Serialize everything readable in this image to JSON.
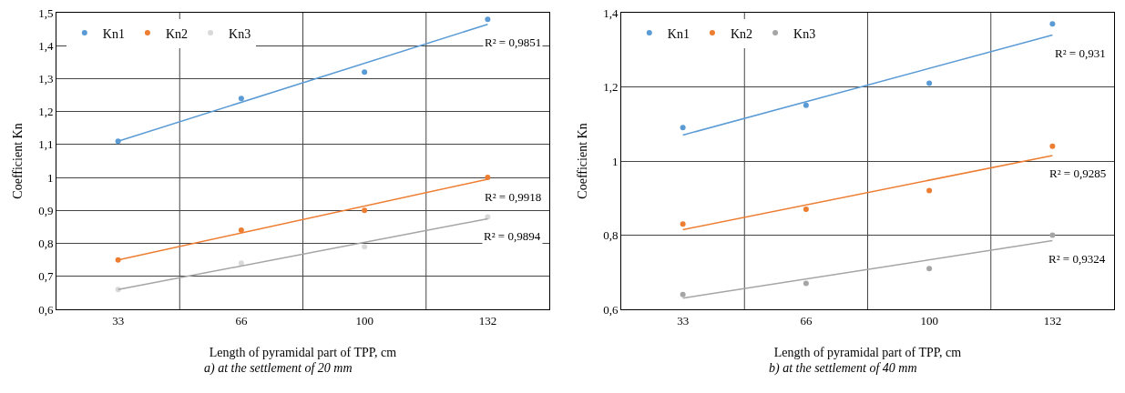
{
  "chart_data": [
    {
      "type": "scatter",
      "xlabel": "Length of pyramidal part of TPP, cm",
      "ylabel": "Coefficient Kn",
      "categories": [
        "33",
        "66",
        "100",
        "132"
      ],
      "series": [
        {
          "name": "Kn1",
          "color": "#5b9bd5",
          "values": [
            1.11,
            1.24,
            1.32,
            1.48
          ]
        },
        {
          "name": "Kn2",
          "color": "#ed7d31",
          "values": [
            0.75,
            0.84,
            0.9,
            1.0
          ]
        },
        {
          "name": "Kn3",
          "color": "#d9d9d9",
          "values": [
            0.66,
            0.74,
            0.79,
            0.88
          ]
        },
        {
          "type": "line",
          "marker": "none",
          "color": "#5b9bd5",
          "x": [
            "33",
            "132"
          ],
          "values": [
            1.11,
            1.465
          ]
        },
        {
          "type": "line",
          "marker": "none",
          "color": "#ed7d31",
          "x": [
            "33",
            "132"
          ],
          "values": [
            0.75,
            0.995
          ]
        },
        {
          "type": "line",
          "marker": "none",
          "color": "#a5a5a5",
          "x": [
            "33",
            "132"
          ],
          "values": [
            0.66,
            0.875
          ]
        }
      ],
      "ylim": [
        0.6,
        1.5
      ],
      "yticks": [
        {
          "value": 0.6,
          "label": "0,6"
        },
        {
          "value": 0.7,
          "label": "0,7"
        },
        {
          "value": 0.8,
          "label": "0,8"
        },
        {
          "value": 0.9,
          "label": "0,9"
        },
        1,
        {
          "value": 1.1,
          "label": "1,1"
        },
        {
          "value": 1.2,
          "label": "1,2"
        },
        {
          "value": 1.3,
          "label": "1,3"
        },
        {
          "value": 1.4,
          "label": "1,4"
        },
        {
          "value": 1.5,
          "label": "1,5"
        }
      ],
      "grid": true,
      "legend": "top left",
      "marker": "circle",
      "line_style": "solid",
      "annotations": [
        "R² = 0,9851",
        "R² = 0,9918",
        "R² = 0,9894",
        "a) at the settlement of 20 mm"
      ]
    },
    {
      "type": "scatter",
      "xlabel": "Length of pyramidal part of TPP, cm",
      "ylabel": "Coefficient Kn",
      "categories": [
        "33",
        "66",
        "100",
        "132"
      ],
      "series": [
        {
          "name": "Kn1",
          "color": "#5b9bd5",
          "values": [
            1.09,
            1.15,
            1.21,
            1.37
          ]
        },
        {
          "name": "Kn2",
          "color": "#ed7d31",
          "values": [
            0.83,
            0.87,
            0.92,
            1.04
          ]
        },
        {
          "name": "Kn3",
          "color": "#a5a5a5",
          "values": [
            0.64,
            0.67,
            0.71,
            0.8
          ]
        },
        {
          "type": "line",
          "marker": "none",
          "color": "#5b9bd5",
          "x": [
            "33",
            "132"
          ],
          "values": [
            1.07,
            1.34
          ]
        },
        {
          "type": "line",
          "marker": "none",
          "color": "#ed7d31",
          "x": [
            "33",
            "132"
          ],
          "values": [
            0.815,
            1.015
          ]
        },
        {
          "type": "line",
          "marker": "none",
          "color": "#a5a5a5",
          "x": [
            "33",
            "132"
          ],
          "values": [
            0.63,
            0.785
          ]
        }
      ],
      "ylim": [
        0.6,
        1.4
      ],
      "yticks": [
        {
          "value": 0.6,
          "label": "0,6"
        },
        {
          "value": 0.8,
          "label": "0,8"
        },
        1,
        {
          "value": 1.2,
          "label": "1,2"
        },
        {
          "value": 1.4,
          "label": "1,4"
        }
      ],
      "grid": true,
      "legend": "top left",
      "marker": "circle",
      "line_style": "solid",
      "annotations": [
        "R² = 0,931",
        "R² = 0,9285",
        "R² = 0,9324",
        "b) at the settlement of 40 mm"
      ]
    }
  ]
}
